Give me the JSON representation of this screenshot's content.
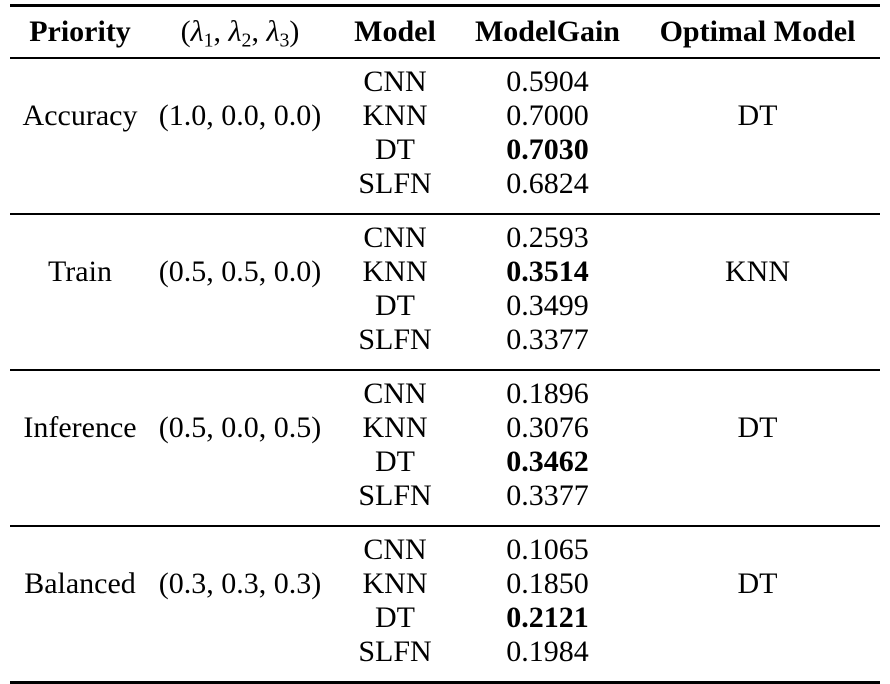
{
  "table": {
    "headers": {
      "priority": "Priority",
      "lambda": {
        "open": "(",
        "symbol": "λ",
        "sub1": "1",
        "sub2": "2",
        "sub3": "3",
        "sep": ", ",
        "close": ")"
      },
      "model": "Model",
      "model_gain": "ModelGain",
      "optimal_model": "Optimal Model"
    },
    "groups": [
      {
        "priority": "Accuracy",
        "lambdas": "(1.0, 0.0, 0.0)",
        "optimal": "DT",
        "rows": [
          {
            "model": "CNN",
            "gain": "0.5904",
            "bold": false
          },
          {
            "model": "KNN",
            "gain": "0.7000",
            "bold": false
          },
          {
            "model": "DT",
            "gain": "0.7030",
            "bold": true
          },
          {
            "model": "SLFN",
            "gain": "0.6824",
            "bold": false
          }
        ]
      },
      {
        "priority": "Train",
        "lambdas": "(0.5, 0.5, 0.0)",
        "optimal": "KNN",
        "rows": [
          {
            "model": "CNN",
            "gain": "0.2593",
            "bold": false
          },
          {
            "model": "KNN",
            "gain": "0.3514",
            "bold": true
          },
          {
            "model": "DT",
            "gain": "0.3499",
            "bold": false
          },
          {
            "model": "SLFN",
            "gain": "0.3377",
            "bold": false
          }
        ]
      },
      {
        "priority": "Inference",
        "lambdas": "(0.5, 0.0, 0.5)",
        "optimal": "DT",
        "rows": [
          {
            "model": "CNN",
            "gain": "0.1896",
            "bold": false
          },
          {
            "model": "KNN",
            "gain": "0.3076",
            "bold": false
          },
          {
            "model": "DT",
            "gain": "0.3462",
            "bold": true
          },
          {
            "model": "SLFN",
            "gain": "0.3377",
            "bold": false
          }
        ]
      },
      {
        "priority": "Balanced",
        "lambdas": "(0.3, 0.3, 0.3)",
        "optimal": "DT",
        "rows": [
          {
            "model": "CNN",
            "gain": "0.1065",
            "bold": false
          },
          {
            "model": "KNN",
            "gain": "0.1850",
            "bold": false
          },
          {
            "model": "DT",
            "gain": "0.2121",
            "bold": true
          },
          {
            "model": "SLFN",
            "gain": "0.1984",
            "bold": false
          }
        ]
      }
    ]
  },
  "colors": {
    "text": "#000000",
    "background": "#ffffff",
    "rule": "#000000"
  }
}
